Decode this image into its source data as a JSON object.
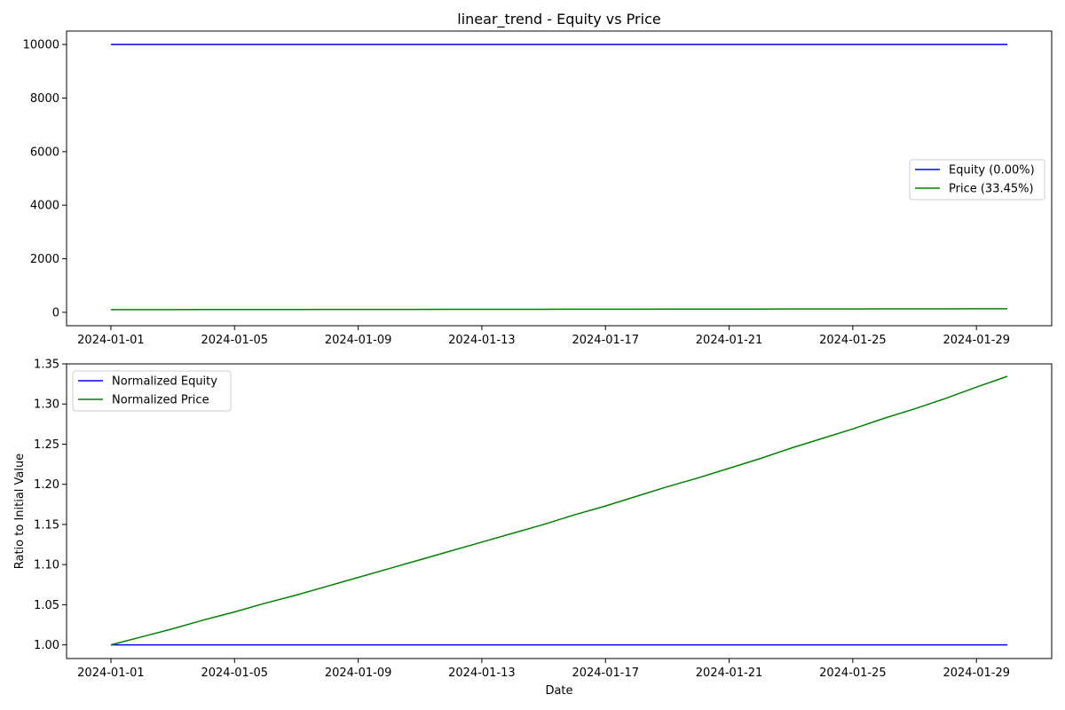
{
  "chart_data": [
    {
      "type": "line",
      "title": "linear_trend - Equity vs Price",
      "xlabel": "",
      "ylabel": "",
      "x": [
        "2024-01-01",
        "2024-01-02",
        "2024-01-03",
        "2024-01-04",
        "2024-01-05",
        "2024-01-06",
        "2024-01-07",
        "2024-01-08",
        "2024-01-09",
        "2024-01-10",
        "2024-01-11",
        "2024-01-12",
        "2024-01-13",
        "2024-01-14",
        "2024-01-15",
        "2024-01-16",
        "2024-01-17",
        "2024-01-18",
        "2024-01-19",
        "2024-01-20",
        "2024-01-21",
        "2024-01-22",
        "2024-01-23",
        "2024-01-24",
        "2024-01-25",
        "2024-01-26",
        "2024-01-27",
        "2024-01-28",
        "2024-01-29",
        "2024-01-30"
      ],
      "xticks": [
        "2024-01-01",
        "2024-01-05",
        "2024-01-09",
        "2024-01-13",
        "2024-01-17",
        "2024-01-21",
        "2024-01-25",
        "2024-01-29"
      ],
      "xlim": [
        "2024-01-01",
        "2024-01-30"
      ],
      "yticks": [
        0,
        2000,
        4000,
        6000,
        8000,
        10000
      ],
      "ylim": [
        -500,
        10500
      ],
      "grid": false,
      "legend": "center-right",
      "series": [
        {
          "name": "Equity (0.00%)",
          "color": "#0000ff",
          "values": [
            10000,
            10000,
            10000,
            10000,
            10000,
            10000,
            10000,
            10000,
            10000,
            10000,
            10000,
            10000,
            10000,
            10000,
            10000,
            10000,
            10000,
            10000,
            10000,
            10000,
            10000,
            10000,
            10000,
            10000,
            10000,
            10000,
            10000,
            10000,
            10000,
            10000
          ]
        },
        {
          "name": "Price (33.45%)",
          "color": "#008000",
          "values": [
            100,
            101.0,
            102.0,
            103.1,
            104.1,
            105.2,
            106.2,
            107.3,
            108.4,
            109.5,
            110.6,
            111.7,
            112.8,
            113.9,
            115.0,
            116.2,
            117.3,
            118.5,
            119.7,
            120.8,
            122.0,
            123.2,
            124.5,
            125.7,
            126.9,
            128.2,
            129.4,
            130.7,
            132.1,
            133.45
          ]
        }
      ]
    },
    {
      "type": "line",
      "title": "",
      "xlabel": "Date",
      "ylabel": "Ratio to Initial Value",
      "x": [
        "2024-01-01",
        "2024-01-02",
        "2024-01-03",
        "2024-01-04",
        "2024-01-05",
        "2024-01-06",
        "2024-01-07",
        "2024-01-08",
        "2024-01-09",
        "2024-01-10",
        "2024-01-11",
        "2024-01-12",
        "2024-01-13",
        "2024-01-14",
        "2024-01-15",
        "2024-01-16",
        "2024-01-17",
        "2024-01-18",
        "2024-01-19",
        "2024-01-20",
        "2024-01-21",
        "2024-01-22",
        "2024-01-23",
        "2024-01-24",
        "2024-01-25",
        "2024-01-26",
        "2024-01-27",
        "2024-01-28",
        "2024-01-29",
        "2024-01-30"
      ],
      "xticks": [
        "2024-01-01",
        "2024-01-05",
        "2024-01-09",
        "2024-01-13",
        "2024-01-17",
        "2024-01-21",
        "2024-01-25",
        "2024-01-29"
      ],
      "xlim": [
        "2024-01-01",
        "2024-01-30"
      ],
      "yticks": [
        1.0,
        1.05,
        1.1,
        1.15,
        1.2,
        1.25,
        1.3,
        1.35
      ],
      "ytick_decimals": 2,
      "ylim": [
        0.983,
        1.35
      ],
      "grid": false,
      "legend": "upper-left",
      "series": [
        {
          "name": "Normalized Equity",
          "color": "#0000ff",
          "values": [
            1,
            1,
            1,
            1,
            1,
            1,
            1,
            1,
            1,
            1,
            1,
            1,
            1,
            1,
            1,
            1,
            1,
            1,
            1,
            1,
            1,
            1,
            1,
            1,
            1,
            1,
            1,
            1,
            1,
            1
          ]
        },
        {
          "name": "Normalized Price",
          "color": "#008000",
          "values": [
            1.0,
            1.01,
            1.02,
            1.031,
            1.041,
            1.052,
            1.062,
            1.073,
            1.084,
            1.095,
            1.106,
            1.117,
            1.128,
            1.139,
            1.15,
            1.162,
            1.173,
            1.185,
            1.197,
            1.208,
            1.22,
            1.232,
            1.245,
            1.257,
            1.269,
            1.282,
            1.294,
            1.307,
            1.321,
            1.3345
          ]
        }
      ]
    }
  ]
}
